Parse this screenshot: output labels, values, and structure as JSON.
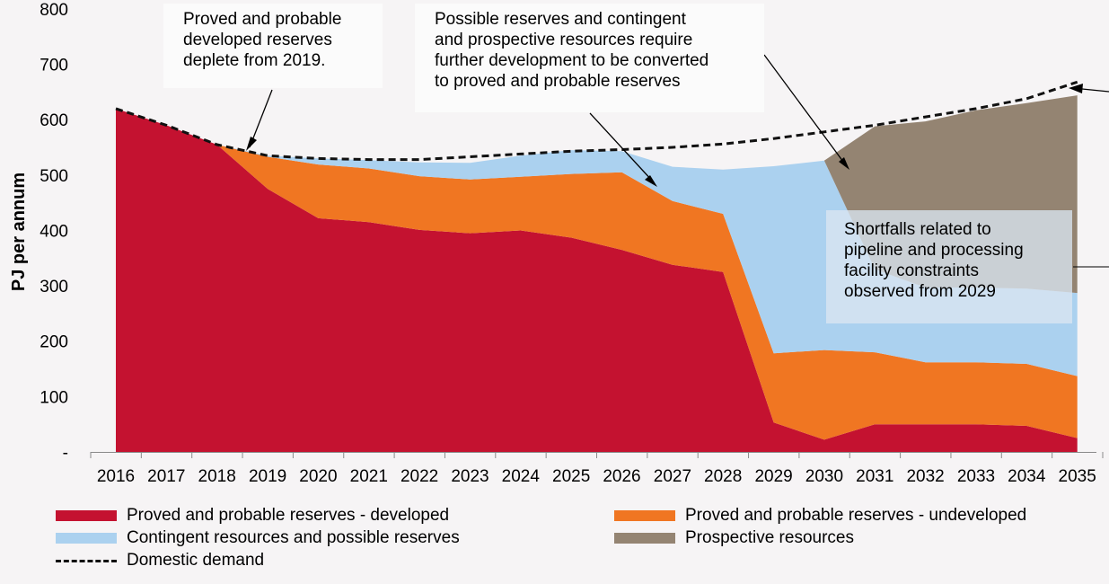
{
  "chart_data": {
    "type": "area",
    "stacked": true,
    "x": [
      "2016",
      "2017",
      "2018",
      "2019",
      "2020",
      "2021",
      "2022",
      "2023",
      "2024",
      "2025",
      "2026",
      "2027",
      "2028",
      "2029",
      "2030",
      "2031",
      "2032",
      "2033",
      "2034",
      "2035"
    ],
    "ylabel": "PJ per annum",
    "ylim": [
      0,
      800
    ],
    "yticks": [
      "-",
      "100",
      "200",
      "300",
      "400",
      "500",
      "600",
      "700",
      "800"
    ],
    "grid": false,
    "legend_position": "bottom",
    "series": [
      {
        "name": "Proved and probable reserves - developed",
        "color": "#c41230",
        "values": [
          620,
          590,
          555,
          475,
          422,
          415,
          401,
          395,
          400,
          387,
          365,
          338,
          325,
          53,
          22,
          50,
          50,
          50,
          47,
          25
        ]
      },
      {
        "name": "Proved and probable reserves - undeveloped",
        "color": "#f07622",
        "values": [
          0,
          0,
          0,
          58,
          97,
          97,
          97,
          97,
          97,
          115,
          140,
          115,
          105,
          125,
          162,
          130,
          112,
          112,
          112,
          112
        ]
      },
      {
        "name": "Contingent resources and possible reserves",
        "color": "#abd1ef",
        "values": [
          0,
          0,
          0,
          2,
          11,
          15,
          25,
          30,
          38,
          43,
          38,
          62,
          80,
          338,
          342,
          150,
          135,
          135,
          136,
          150
        ]
      },
      {
        "name": "Prospective resources",
        "color": "#948472",
        "values": [
          0,
          0,
          0,
          0,
          0,
          0,
          0,
          0,
          0,
          0,
          0,
          0,
          0,
          0,
          0,
          258,
          300,
          320,
          335,
          357
        ]
      }
    ],
    "demand": {
      "name": "Domestic demand",
      "values": [
        620,
        590,
        555,
        535,
        530,
        528,
        528,
        533,
        538,
        543,
        546,
        550,
        556,
        566,
        578,
        590,
        605,
        620,
        638,
        668
      ]
    },
    "annotations": [
      "Proved and probable developed reserves deplete from 2019.",
      "Possible reserves and contingent and prospective resources require further development to be converted to proved and probable reserves",
      "Shortfalls related to pipeline and processing facility constraints observed from 2029"
    ]
  },
  "annotations": {
    "developed": [
      "Proved and probable",
      "developed reserves",
      "deplete from 2019."
    ],
    "possible": [
      "Possible reserves and contingent",
      "and prospective resources require",
      "further development to be converted",
      "to proved and probable reserves"
    ],
    "shortfall": [
      "Shortfalls related to",
      "pipeline and processing",
      "facility constraints",
      "observed from 2029"
    ]
  },
  "legend": {
    "developed": "Proved and probable reserves - developed",
    "undeveloped": "Proved and probable reserves - undeveloped",
    "contingent": "Contingent resources and possible reserves",
    "prospective": "Prospective resources",
    "demand": "Domestic demand"
  },
  "colors": {
    "developed": "#c41230",
    "undeveloped": "#f07622",
    "contingent": "#abd1ef",
    "prospective": "#948472"
  }
}
